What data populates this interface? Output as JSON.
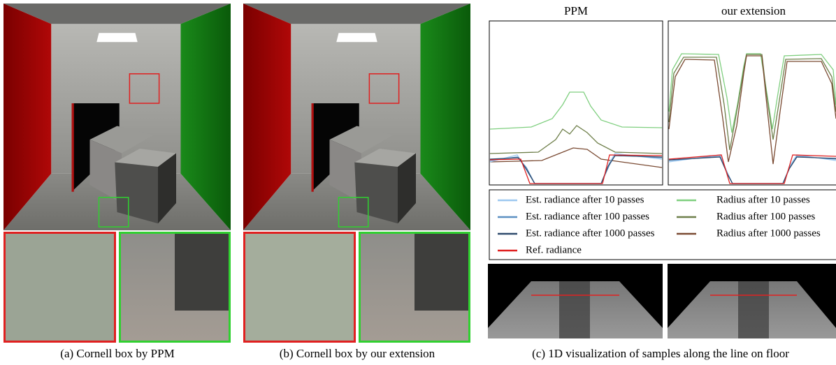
{
  "panels": [
    {
      "caption": "(a)  Cornell box by PPM"
    },
    {
      "caption": "(b)  Cornell box by our extension"
    },
    {
      "caption": "(c)  1D visualization of samples along the line on floor"
    }
  ],
  "plots": [
    {
      "title": "PPM"
    },
    {
      "title": "our extension"
    }
  ],
  "legend": [
    {
      "label": "Est. radiance after 10 passes",
      "color": "#9cc8f0"
    },
    {
      "label": "Est. radiance after 100 passes",
      "color": "#5b8fc2"
    },
    {
      "label": "Est. radiance after 1000 passes",
      "color": "#2f4a6c"
    },
    {
      "label": "Ref. radiance",
      "color": "#e02020"
    },
    {
      "label": "Radius after 10 passes",
      "color": "#7fcf7f"
    },
    {
      "label": "Radius after 100 passes",
      "color": "#6e7f4a"
    },
    {
      "label": "Radius after 1000 passes",
      "color": "#7a4a32"
    }
  ]
}
